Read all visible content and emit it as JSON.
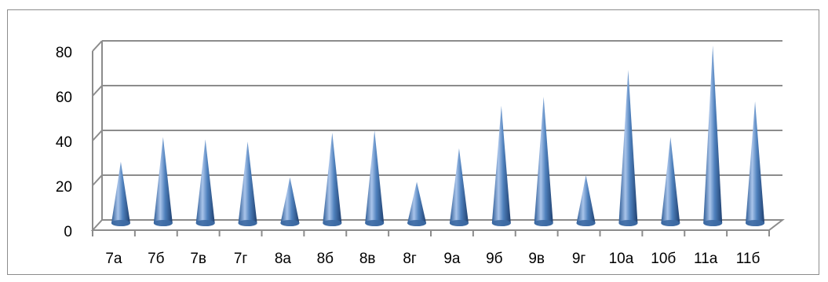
{
  "chart_data": {
    "type": "bar",
    "style": "3d-cone",
    "categories": [
      "7а",
      "7б",
      "7в",
      "7г",
      "8а",
      "8б",
      "8в",
      "8г",
      "9а",
      "9б",
      "9в",
      "9г",
      "10а",
      "10б",
      "11а",
      "11б"
    ],
    "values": [
      26,
      37,
      36,
      35,
      19,
      39,
      40,
      17,
      32,
      51,
      55,
      20,
      67,
      37,
      78,
      53
    ],
    "ylim": [
      0,
      80
    ],
    "yticks": [
      0,
      20,
      40,
      60,
      80
    ],
    "grid": true,
    "title": "",
    "xlabel": "",
    "ylabel": "",
    "colors": {
      "cone_light": "#a9c4ea",
      "cone_mid": "#4f81bd",
      "cone_dark": "#1f497d",
      "grid": "#8c8c8c"
    }
  }
}
